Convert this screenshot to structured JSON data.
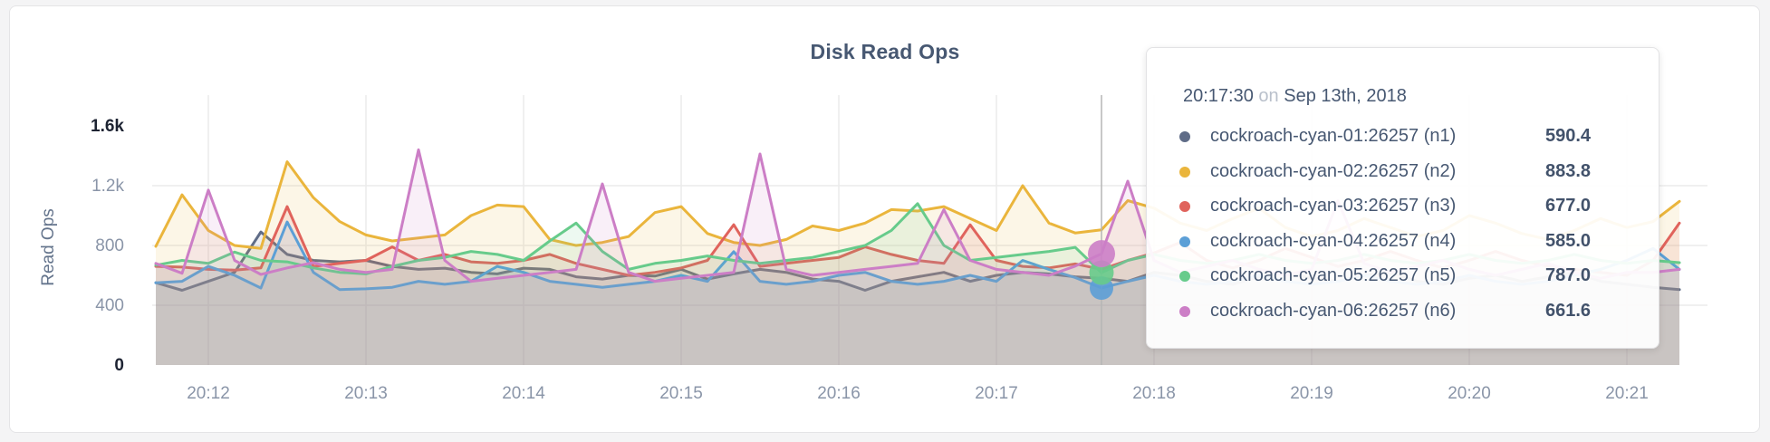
{
  "page": {
    "background": "#f4f4f5"
  },
  "chart_data": {
    "type": "line",
    "title": "Disk Read Ops",
    "ylabel": "Read Ops",
    "xlabel": "",
    "grid": true,
    "ylim": [
      0,
      1600
    ],
    "x_start": "20:11:40",
    "x_interval_seconds": 10,
    "x_tick_labels": [
      "20:12",
      "20:13",
      "20:14",
      "20:15",
      "20:16",
      "20:17",
      "20:18",
      "20:19",
      "20:20",
      "20:21"
    ],
    "y_ticks": [
      {
        "label": "1.6k",
        "value": 1600,
        "emphasis": true,
        "gridline": false
      },
      {
        "label": "1.2k",
        "value": 1200,
        "emphasis": false,
        "gridline": true
      },
      {
        "label": "800",
        "value": 800,
        "emphasis": false,
        "gridline": true
      },
      {
        "label": "400",
        "value": 400,
        "emphasis": false,
        "gridline": true
      },
      {
        "label": "0",
        "value": 0,
        "emphasis": true,
        "gridline": false
      }
    ],
    "series": [
      {
        "id": "n1",
        "name": "cockroach-cyan-01:26257 (n1)",
        "color": "#5f6c87",
        "values": [
          551,
          500,
          560,
          620,
          890,
          740,
          700,
          690,
          700,
          660,
          640,
          648,
          620,
          610,
          648,
          640,
          590,
          575,
          600,
          595,
          640,
          575,
          610,
          640,
          620,
          575,
          560,
          500,
          560,
          590,
          620,
          560,
          600,
          620,
          610,
          590.4,
          580,
          560,
          620,
          600,
          560,
          540,
          590,
          620,
          580,
          560,
          600,
          620,
          560,
          540,
          580,
          600,
          560,
          590,
          620,
          560,
          540,
          520,
          505
        ]
      },
      {
        "id": "n2",
        "name": "cockroach-cyan-02:26257 (n2)",
        "color": "#eab53c",
        "values": [
          794,
          1139,
          900,
          800,
          780,
          1360,
          1120,
          960,
          870,
          830,
          850,
          870,
          1000,
          1070,
          1060,
          840,
          800,
          820,
          860,
          1020,
          1060,
          880,
          820,
          800,
          840,
          930,
          900,
          950,
          1040,
          1030,
          1060,
          980,
          900,
          1200,
          950,
          883.8,
          905,
          1100,
          1050,
          950,
          900,
          980,
          1050,
          920,
          860,
          900,
          980,
          920,
          860,
          900,
          1000,
          950,
          880,
          840,
          900,
          980,
          920,
          960,
          1095
        ]
      },
      {
        "id": "n3",
        "name": "cockroach-cyan-03:26257 (n3)",
        "color": "#e0635c",
        "values": [
          660,
          655,
          640,
          635,
          650,
          1060,
          660,
          680,
          700,
          790,
          700,
          740,
          690,
          680,
          700,
          740,
          680,
          640,
          600,
          620,
          650,
          700,
          939,
          660,
          680,
          700,
          720,
          790,
          740,
          700,
          680,
          938,
          700,
          660,
          650,
          677,
          640,
          700,
          750,
          820,
          700,
          650,
          700,
          780,
          720,
          660,
          700,
          760,
          700,
          650,
          700,
          760,
          700,
          660,
          640,
          620,
          600,
          700,
          950
        ]
      },
      {
        "id": "n4",
        "name": "cockroach-cyan-04:26257 (n4)",
        "color": "#5c9fd6",
        "values": [
          550,
          560,
          660,
          600,
          515,
          957,
          620,
          505,
          510,
          520,
          560,
          540,
          560,
          660,
          620,
          560,
          540,
          520,
          540,
          560,
          600,
          560,
          758,
          560,
          540,
          560,
          600,
          620,
          560,
          540,
          560,
          600,
          560,
          700,
          640,
          585,
          515,
          560,
          600,
          560,
          540,
          560,
          600,
          560,
          540,
          560,
          600,
          560,
          540,
          560,
          600,
          560,
          540,
          560,
          600,
          640,
          700,
          780,
          640
        ]
      },
      {
        "id": "n5",
        "name": "cockroach-cyan-05:26257 (n5)",
        "color": "#67cb8b",
        "values": [
          668,
          700,
          680,
          756,
          700,
          690,
          650,
          620,
          610,
          660,
          700,
          720,
          760,
          740,
          700,
          830,
          950,
          760,
          640,
          680,
          700,
          730,
          700,
          680,
          700,
          720,
          760,
          800,
          900,
          1080,
          800,
          700,
          720,
          740,
          760,
          787,
          618,
          700,
          740,
          700,
          680,
          700,
          740,
          700,
          680,
          700,
          740,
          700,
          680,
          700,
          740,
          700,
          680,
          700,
          740,
          700,
          680,
          700,
          685
        ]
      },
      {
        "id": "n6",
        "name": "cockroach-cyan-06:26257 (n6)",
        "color": "#cc7ec6",
        "values": [
          680,
          614,
          1170,
          700,
          606,
          650,
          685,
          640,
          620,
          640,
          1440,
          700,
          560,
          580,
          600,
          620,
          640,
          1212,
          620,
          560,
          580,
          600,
          620,
          1412,
          640,
          600,
          620,
          640,
          660,
          680,
          1040,
          700,
          640,
          620,
          600,
          661.6,
          745,
          1230,
          700,
          620,
          660,
          700,
          640,
          600,
          640,
          1100,
          680,
          620,
          660,
          700,
          640,
          600,
          640,
          680,
          620,
          580,
          620,
          620,
          640
        ]
      }
    ]
  },
  "hover": {
    "crosshair_index": 36,
    "dots": [
      {
        "series_index": 3,
        "radius": 13
      },
      {
        "series_index": 4,
        "radius": 13.5
      },
      {
        "series_index": 5,
        "radius": 15
      }
    ]
  },
  "tooltip": {
    "time": "20:17:30",
    "connector": "on",
    "date": "Sep 13th, 2018",
    "rows": [
      {
        "name": "cockroach-cyan-01:26257 (n1)",
        "color": "#5f6c87",
        "value": "590.4"
      },
      {
        "name": "cockroach-cyan-02:26257 (n2)",
        "color": "#eab53c",
        "value": "883.8"
      },
      {
        "name": "cockroach-cyan-03:26257 (n3)",
        "color": "#e0635c",
        "value": "677.0"
      },
      {
        "name": "cockroach-cyan-04:26257 (n4)",
        "color": "#5c9fd6",
        "value": "585.0"
      },
      {
        "name": "cockroach-cyan-05:26257 (n5)",
        "color": "#67cb8b",
        "value": "787.0"
      },
      {
        "name": "cockroach-cyan-06:26257 (n6)",
        "color": "#cc7ec6",
        "value": "661.6"
      }
    ]
  }
}
